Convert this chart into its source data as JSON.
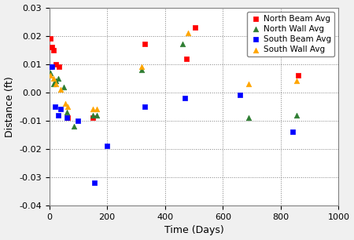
{
  "title": "",
  "xlabel": "Time (Days)",
  "ylabel": "Distance (ft)",
  "xlim": [
    0,
    1000
  ],
  "ylim": [
    -0.04,
    0.03
  ],
  "xticks": [
    0,
    200,
    400,
    600,
    800,
    1000
  ],
  "yticks": [
    -0.04,
    -0.03,
    -0.02,
    -0.01,
    0.0,
    0.01,
    0.02,
    0.03
  ],
  "north_beam_avg": {
    "x": [
      5,
      9,
      14,
      22,
      35,
      65,
      150,
      330,
      475,
      505,
      860
    ],
    "y": [
      0.019,
      0.016,
      0.015,
      0.01,
      0.009,
      -0.009,
      -0.009,
      0.017,
      0.012,
      0.023,
      0.006
    ],
    "color": "#FF0000",
    "marker": "s",
    "label": "North Beam Avg"
  },
  "north_wall_avg": {
    "x": [
      5,
      14,
      22,
      30,
      50,
      60,
      85,
      150,
      165,
      320,
      460,
      690,
      855
    ],
    "y": [
      0.007,
      0.003,
      0.004,
      0.005,
      0.002,
      -0.007,
      -0.012,
      -0.008,
      -0.008,
      0.008,
      0.017,
      -0.009,
      -0.008
    ],
    "color": "#2E7D32",
    "marker": "^",
    "label": "North Wall Avg"
  },
  "south_beam_avg": {
    "x": [
      5,
      9,
      20,
      30,
      40,
      60,
      100,
      155,
      200,
      330,
      470,
      660,
      840
    ],
    "y": [
      0.009,
      0.009,
      -0.005,
      -0.008,
      -0.006,
      -0.009,
      -0.01,
      -0.032,
      -0.019,
      -0.005,
      -0.002,
      -0.001,
      -0.014
    ],
    "color": "#0000FF",
    "marker": "s",
    "label": "South Beam Avg"
  },
  "south_wall_avg": {
    "x": [
      5,
      14,
      22,
      40,
      55,
      65,
      150,
      165,
      320,
      480,
      690,
      855
    ],
    "y": [
      0.006,
      0.005,
      0.003,
      0.001,
      -0.004,
      -0.005,
      -0.006,
      -0.006,
      0.009,
      0.021,
      0.003,
      0.004
    ],
    "color": "#FFA500",
    "marker": "^",
    "label": "South Wall Avg"
  },
  "plot_bg_color": "#FFFFFF",
  "fig_bg_color": "#F0F0F0",
  "grid_color": "#808080",
  "spine_color": "#808080",
  "tick_fontsize": 8,
  "label_fontsize": 9,
  "legend_fontsize": 7.5,
  "marker_size": 22
}
